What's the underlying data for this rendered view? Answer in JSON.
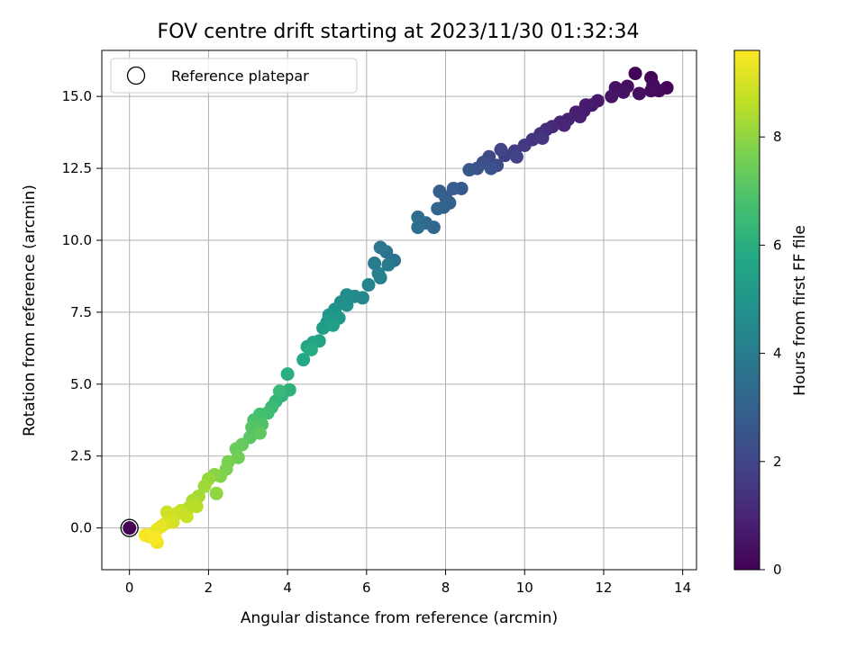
{
  "chart_data": {
    "type": "scatter",
    "title": "FOV centre drift starting at 2023/11/30 01:32:34",
    "xlabel": "Angular distance from reference (arcmin)",
    "ylabel": "Rotation from reference (arcmin)",
    "xlim": [
      -0.7,
      14.35
    ],
    "ylim": [
      -1.45,
      16.6
    ],
    "x_ticks": [
      0,
      2,
      4,
      6,
      8,
      10,
      12,
      14
    ],
    "x_tick_labels": [
      "0",
      "2",
      "4",
      "6",
      "8",
      "10",
      "12",
      "14"
    ],
    "y_ticks": [
      0,
      2.5,
      5,
      7.5,
      10,
      12.5,
      15
    ],
    "y_tick_labels": [
      "0.0",
      "2.5",
      "5.0",
      "7.5",
      "10.0",
      "12.5",
      "15.0"
    ],
    "grid": true,
    "legend": {
      "position": "upper-left",
      "entries": [
        "Reference platepar"
      ]
    },
    "colorbar": {
      "label": "Hours from first FF file",
      "range": [
        0,
        9.6
      ],
      "ticks": [
        0,
        2,
        4,
        6,
        8
      ],
      "tick_labels": [
        "0",
        "2",
        "4",
        "6",
        "8"
      ],
      "colormap": "viridis"
    },
    "reference_point": {
      "x": 0,
      "y": 0
    },
    "series": [
      {
        "points": [
          [
            12.8,
            15.8,
            0.05
          ],
          [
            13.2,
            15.65,
            0.1
          ],
          [
            13.6,
            15.3,
            0.15
          ],
          [
            13.4,
            15.2,
            0.2
          ],
          [
            13.25,
            15.4,
            0.25
          ],
          [
            13.2,
            15.2,
            0.3
          ],
          [
            12.6,
            15.35,
            0.35
          ],
          [
            12.9,
            15.1,
            0.4
          ],
          [
            12.3,
            15.3,
            0.45
          ],
          [
            12.5,
            15.15,
            0.5
          ],
          [
            12.2,
            15.0,
            0.55
          ],
          [
            11.85,
            14.85,
            0.6
          ],
          [
            11.7,
            14.7,
            0.65
          ],
          [
            11.5,
            14.5,
            0.7
          ],
          [
            11.55,
            14.7,
            0.75
          ],
          [
            11.3,
            14.45,
            0.8
          ],
          [
            11.4,
            14.3,
            0.85
          ],
          [
            11.1,
            14.2,
            0.9
          ],
          [
            10.9,
            14.1,
            0.95
          ],
          [
            11.0,
            14.0,
            1.0
          ],
          [
            10.7,
            13.95,
            1.1
          ],
          [
            10.55,
            13.85,
            1.2
          ],
          [
            10.4,
            13.7,
            1.3
          ],
          [
            10.2,
            13.5,
            1.4
          ],
          [
            10.45,
            13.55,
            1.5
          ],
          [
            10.0,
            13.3,
            1.6
          ],
          [
            9.75,
            13.1,
            1.7
          ],
          [
            9.5,
            12.95,
            1.8
          ],
          [
            9.8,
            12.9,
            1.9
          ],
          [
            9.4,
            13.15,
            2.0
          ],
          [
            9.1,
            12.9,
            2.1
          ],
          [
            9.3,
            12.6,
            2.2
          ],
          [
            8.95,
            12.7,
            2.3
          ],
          [
            9.15,
            12.5,
            2.4
          ],
          [
            8.8,
            12.5,
            2.5
          ],
          [
            8.6,
            12.45,
            2.6
          ],
          [
            8.4,
            11.8,
            2.7
          ],
          [
            8.2,
            11.8,
            2.8
          ],
          [
            8.0,
            11.5,
            2.85
          ],
          [
            7.85,
            11.7,
            2.9
          ],
          [
            8.1,
            11.3,
            3.0
          ],
          [
            7.95,
            11.15,
            3.05
          ],
          [
            7.8,
            11.1,
            3.1
          ],
          [
            7.7,
            10.45,
            3.2
          ],
          [
            7.5,
            10.6,
            3.3
          ],
          [
            7.3,
            10.8,
            3.4
          ],
          [
            7.3,
            10.45,
            3.5
          ],
          [
            6.7,
            9.3,
            3.6
          ],
          [
            6.5,
            9.6,
            3.7
          ],
          [
            6.35,
            9.75,
            3.8
          ],
          [
            6.55,
            9.15,
            3.9
          ],
          [
            6.2,
            9.2,
            4.0
          ],
          [
            6.3,
            8.85,
            4.1
          ],
          [
            6.35,
            8.7,
            4.2
          ],
          [
            6.05,
            8.45,
            4.3
          ],
          [
            5.9,
            8.0,
            4.4
          ],
          [
            5.7,
            8.05,
            4.5
          ],
          [
            5.5,
            8.1,
            4.6
          ],
          [
            5.35,
            7.85,
            4.7
          ],
          [
            5.5,
            7.75,
            4.8
          ],
          [
            5.2,
            7.6,
            4.9
          ],
          [
            5.05,
            7.4,
            5.0
          ],
          [
            5.3,
            7.3,
            5.1
          ],
          [
            5.0,
            7.15,
            5.2
          ],
          [
            4.9,
            6.95,
            5.3
          ],
          [
            5.15,
            7.05,
            5.4
          ],
          [
            4.8,
            6.5,
            5.5
          ],
          [
            4.65,
            6.45,
            5.6
          ],
          [
            4.5,
            6.3,
            5.7
          ],
          [
            4.4,
            5.85,
            5.8
          ],
          [
            4.6,
            6.2,
            5.9
          ],
          [
            4.0,
            5.35,
            6.0
          ],
          [
            4.05,
            4.8,
            6.1
          ],
          [
            3.85,
            4.6,
            6.2
          ],
          [
            3.7,
            4.4,
            6.3
          ],
          [
            3.8,
            4.75,
            6.4
          ],
          [
            3.6,
            4.2,
            6.5
          ],
          [
            3.5,
            4.0,
            6.6
          ],
          [
            3.3,
            3.95,
            6.7
          ],
          [
            3.15,
            3.75,
            6.8
          ],
          [
            3.35,
            3.6,
            6.9
          ],
          [
            3.1,
            3.5,
            7.0
          ],
          [
            3.05,
            3.15,
            7.1
          ],
          [
            3.3,
            3.3,
            7.2
          ],
          [
            2.85,
            2.9,
            7.3
          ],
          [
            2.7,
            2.75,
            7.4
          ],
          [
            2.75,
            2.45,
            7.5
          ],
          [
            2.5,
            2.3,
            7.6
          ],
          [
            2.45,
            2.05,
            7.7
          ],
          [
            2.3,
            1.8,
            7.8
          ],
          [
            2.15,
            1.85,
            7.9
          ],
          [
            2.2,
            1.2,
            8.0
          ],
          [
            2.0,
            1.7,
            8.1
          ],
          [
            1.9,
            1.45,
            8.2
          ],
          [
            1.75,
            1.1,
            8.3
          ],
          [
            1.6,
            0.95,
            8.4
          ],
          [
            1.5,
            0.7,
            8.5
          ],
          [
            1.7,
            0.75,
            8.6
          ],
          [
            1.3,
            0.6,
            8.7
          ],
          [
            1.45,
            0.4,
            8.8
          ],
          [
            1.2,
            0.5,
            8.85
          ],
          [
            0.95,
            0.55,
            8.9
          ],
          [
            1.1,
            0.2,
            9.0
          ],
          [
            0.9,
            0.15,
            9.1
          ],
          [
            0.8,
            0.05,
            9.2
          ],
          [
            0.7,
            -0.05,
            9.25
          ],
          [
            0.6,
            -0.2,
            9.3
          ],
          [
            0.7,
            -0.5,
            9.4
          ],
          [
            0.5,
            -0.3,
            9.45
          ],
          [
            0.4,
            -0.25,
            9.5
          ],
          [
            0.65,
            -0.35,
            9.55
          ]
        ]
      }
    ]
  }
}
